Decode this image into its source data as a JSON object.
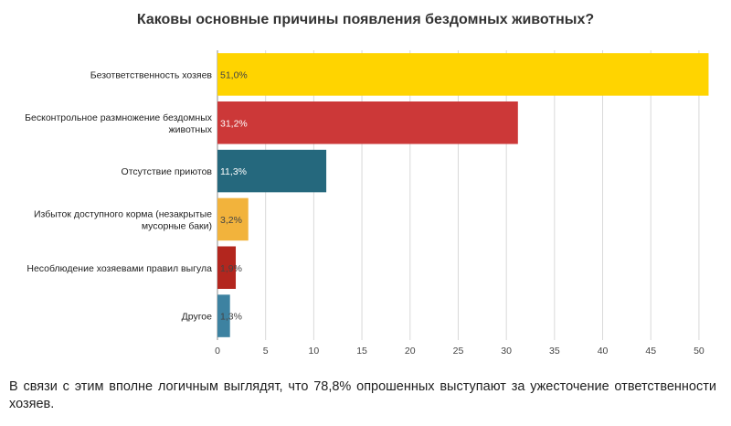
{
  "chart_data": {
    "type": "bar",
    "orientation": "horizontal",
    "title": "Каковы основные причины появления бездомных животных?",
    "categories": [
      [
        "Безответственность хозяев"
      ],
      [
        "Бесконтрольное размножение бездомных",
        "животных"
      ],
      [
        "Отсутствие приютов"
      ],
      [
        "Избыток доступного корма (незакрытые",
        "мусорные баки)"
      ],
      [
        "Несоблюдение хозяевами правил выгула"
      ],
      [
        "Другое"
      ]
    ],
    "values": [
      51.0,
      31.2,
      11.3,
      3.2,
      1.9,
      1.3
    ],
    "value_labels": [
      "51,0%",
      "31,2%",
      "11,3%",
      "3,2%",
      "1,9%",
      "1,3%"
    ],
    "colors": [
      "#ffd400",
      "#cc3838",
      "#25687d",
      "#f2b33c",
      "#b3261e",
      "#3d82a1"
    ],
    "label_colors": [
      "#444444",
      "#ffffff",
      "#ffffff",
      "#444444",
      "#444444",
      "#444444"
    ],
    "xlim": [
      0,
      52
    ],
    "xticks": [
      0,
      5,
      10,
      15,
      20,
      25,
      30,
      35,
      40,
      45,
      50
    ],
    "xlabel": "",
    "ylabel": "",
    "grid": true
  },
  "caption": "В связи с этим вполне логичным выглядят, что 78,8% опрошенных выступают за ужесточение ответственности хозяев."
}
